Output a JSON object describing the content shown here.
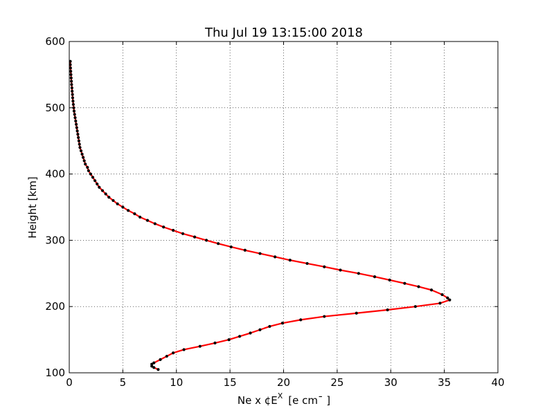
{
  "chart_data": {
    "type": "line",
    "title": "Thu Jul 19 13:15:00 2018",
    "xlabel": "Ne x ¢E",
    "xlabel_sup": "X",
    "xlabel_unit": "[e cm¯ ]",
    "ylabel": "Height [km]",
    "xlim": [
      0,
      40
    ],
    "ylim": [
      100,
      600
    ],
    "xticks": [
      0,
      5,
      10,
      15,
      20,
      25,
      30,
      35,
      40
    ],
    "yticks": [
      100,
      200,
      300,
      400,
      500,
      600
    ],
    "grid": true,
    "line_color": "#ff0000",
    "marker_color": "#000000",
    "series": [
      {
        "points": [
          [
            8.3,
            105
          ],
          [
            7.9,
            108
          ],
          [
            7.7,
            110
          ],
          [
            7.7,
            113
          ],
          [
            7.9,
            115
          ],
          [
            8.5,
            120
          ],
          [
            9.1,
            125
          ],
          [
            9.7,
            130
          ],
          [
            10.7,
            135
          ],
          [
            12.2,
            140
          ],
          [
            13.6,
            145
          ],
          [
            14.9,
            150
          ],
          [
            15.9,
            155
          ],
          [
            16.9,
            160
          ],
          [
            17.8,
            165
          ],
          [
            18.7,
            170
          ],
          [
            19.9,
            175
          ],
          [
            21.6,
            180
          ],
          [
            23.8,
            185
          ],
          [
            26.8,
            190
          ],
          [
            29.7,
            195
          ],
          [
            32.3,
            200
          ],
          [
            34.6,
            205
          ],
          [
            35.5,
            210
          ],
          [
            35.3,
            213
          ],
          [
            34.8,
            218
          ],
          [
            33.8,
            225
          ],
          [
            32.6,
            230
          ],
          [
            31.3,
            235
          ],
          [
            29.9,
            240
          ],
          [
            28.5,
            245
          ],
          [
            27.0,
            250
          ],
          [
            25.3,
            255
          ],
          [
            23.8,
            260
          ],
          [
            22.2,
            265
          ],
          [
            20.6,
            270
          ],
          [
            19.2,
            275
          ],
          [
            17.8,
            280
          ],
          [
            16.4,
            285
          ],
          [
            15.1,
            290
          ],
          [
            13.9,
            295
          ],
          [
            12.8,
            300
          ],
          [
            11.7,
            305
          ],
          [
            10.6,
            310
          ],
          [
            9.7,
            315
          ],
          [
            8.8,
            320
          ],
          [
            8.0,
            325
          ],
          [
            7.3,
            330
          ],
          [
            6.6,
            335
          ],
          [
            6.1,
            340
          ],
          [
            5.5,
            345
          ],
          [
            5.0,
            350
          ],
          [
            4.5,
            355
          ],
          [
            4.1,
            360
          ],
          [
            3.7,
            365
          ],
          [
            3.4,
            370
          ],
          [
            3.1,
            375
          ],
          [
            2.8,
            380
          ],
          [
            2.6,
            385
          ],
          [
            2.4,
            390
          ],
          [
            2.2,
            395
          ],
          [
            2.0,
            400
          ],
          [
            1.8,
            405
          ],
          [
            1.7,
            410
          ],
          [
            1.5,
            415
          ],
          [
            1.4,
            420
          ],
          [
            1.3,
            425
          ],
          [
            1.2,
            430
          ],
          [
            1.1,
            435
          ],
          [
            1.0,
            440
          ],
          [
            0.95,
            445
          ],
          [
            0.9,
            450
          ],
          [
            0.85,
            455
          ],
          [
            0.8,
            460
          ],
          [
            0.75,
            465
          ],
          [
            0.7,
            470
          ],
          [
            0.65,
            475
          ],
          [
            0.6,
            480
          ],
          [
            0.55,
            485
          ],
          [
            0.5,
            490
          ],
          [
            0.45,
            495
          ],
          [
            0.42,
            500
          ],
          [
            0.38,
            505
          ],
          [
            0.35,
            510
          ],
          [
            0.32,
            515
          ],
          [
            0.3,
            520
          ],
          [
            0.27,
            525
          ],
          [
            0.25,
            530
          ],
          [
            0.22,
            535
          ],
          [
            0.2,
            540
          ],
          [
            0.18,
            545
          ],
          [
            0.16,
            550
          ],
          [
            0.14,
            555
          ],
          [
            0.12,
            560
          ],
          [
            0.1,
            565
          ],
          [
            0.1,
            570
          ]
        ]
      }
    ]
  }
}
